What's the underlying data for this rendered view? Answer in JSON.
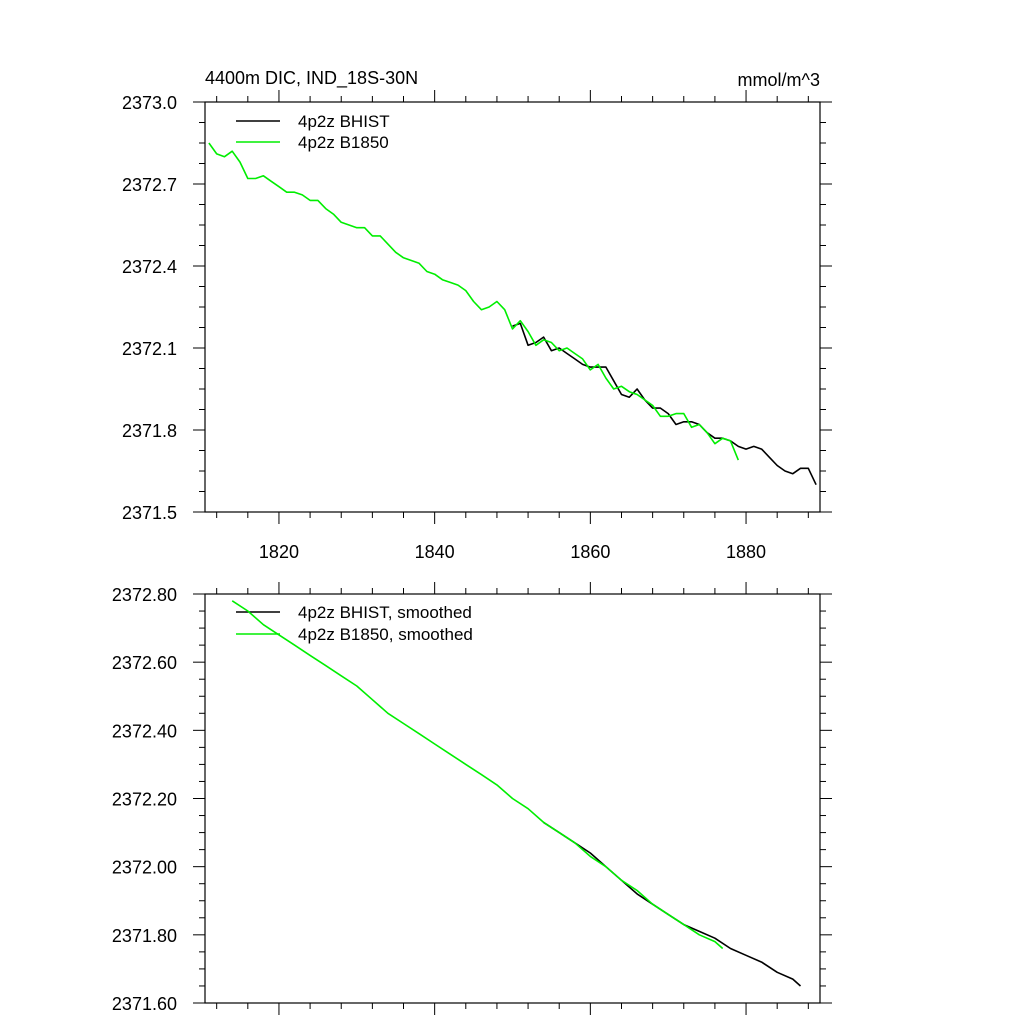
{
  "colors": {
    "bhist": "#000000",
    "b1850": "#00ee00",
    "axis": "#000000",
    "background": "#ffffff"
  },
  "chart_data": [
    {
      "type": "line",
      "title_left": "4400m DIC, IND_18S-30N",
      "title_right": "mmol/m^3",
      "xlabel": "",
      "ylabel": "",
      "xlim": [
        1810.5,
        1889.5
      ],
      "ylim": [
        2371.5,
        2373.0
      ],
      "x_ticks": [
        1820,
        1840,
        1860,
        1880
      ],
      "x_tick_labels": [
        "1820",
        "1840",
        "1860",
        "1880"
      ],
      "y_ticks": [
        2371.5,
        2371.8,
        2372.1,
        2372.4,
        2372.7,
        2373.0
      ],
      "y_tick_labels": [
        "2371.5",
        "2371.8",
        "2372.1",
        "2372.4",
        "2372.7",
        "2373.0"
      ],
      "legend_position": "top-left",
      "grid": false,
      "series": [
        {
          "name": "4p2z BHIST",
          "color": "#000000",
          "x": [
            1850,
            1851,
            1852,
            1853,
            1854,
            1855,
            1856,
            1857,
            1858,
            1859,
            1860,
            1861,
            1862,
            1863,
            1864,
            1865,
            1866,
            1867,
            1868,
            1869,
            1870,
            1871,
            1872,
            1873,
            1874,
            1875,
            1876,
            1877,
            1878,
            1879,
            1880,
            1881,
            1882,
            1883,
            1884,
            1885,
            1886,
            1887,
            1888,
            1889
          ],
          "values": [
            2372.18,
            2372.19,
            2372.11,
            2372.12,
            2372.14,
            2372.09,
            2372.1,
            2372.08,
            2372.06,
            2372.04,
            2372.03,
            2372.03,
            2372.03,
            2371.98,
            2371.93,
            2371.92,
            2371.95,
            2371.91,
            2371.88,
            2371.88,
            2371.86,
            2371.82,
            2371.83,
            2371.83,
            2371.82,
            2371.79,
            2371.77,
            2371.77,
            2371.76,
            2371.74,
            2371.73,
            2371.74,
            2371.73,
            2371.7,
            2371.67,
            2371.65,
            2371.64,
            2371.66,
            2371.66,
            2371.6
          ]
        },
        {
          "name": "4p2z B1850",
          "color": "#00ee00",
          "x": [
            1811,
            1812,
            1813,
            1814,
            1815,
            1816,
            1817,
            1818,
            1819,
            1820,
            1821,
            1822,
            1823,
            1824,
            1825,
            1826,
            1827,
            1828,
            1829,
            1830,
            1831,
            1832,
            1833,
            1834,
            1835,
            1836,
            1837,
            1838,
            1839,
            1840,
            1841,
            1842,
            1843,
            1844,
            1845,
            1846,
            1847,
            1848,
            1849,
            1850,
            1851,
            1852,
            1853,
            1854,
            1855,
            1856,
            1857,
            1858,
            1859,
            1860,
            1861,
            1862,
            1863,
            1864,
            1865,
            1866,
            1867,
            1868,
            1869,
            1870,
            1871,
            1872,
            1873,
            1874,
            1875,
            1876,
            1877,
            1878,
            1879
          ],
          "values": [
            2372.85,
            2372.81,
            2372.8,
            2372.82,
            2372.78,
            2372.72,
            2372.72,
            2372.73,
            2372.71,
            2372.69,
            2372.67,
            2372.67,
            2372.66,
            2372.64,
            2372.64,
            2372.61,
            2372.59,
            2372.56,
            2372.55,
            2372.54,
            2372.54,
            2372.51,
            2372.51,
            2372.48,
            2372.45,
            2372.43,
            2372.42,
            2372.41,
            2372.38,
            2372.37,
            2372.35,
            2372.34,
            2372.33,
            2372.31,
            2372.27,
            2372.24,
            2372.25,
            2372.27,
            2372.24,
            2372.17,
            2372.2,
            2372.16,
            2372.11,
            2372.13,
            2372.12,
            2372.09,
            2372.1,
            2372.08,
            2372.06,
            2372.02,
            2372.04,
            2371.99,
            2371.95,
            2371.96,
            2371.94,
            2371.93,
            2371.91,
            2371.89,
            2371.85,
            2371.85,
            2371.86,
            2371.86,
            2371.81,
            2371.82,
            2371.79,
            2371.75,
            2371.77,
            2371.76,
            2371.69
          ]
        }
      ]
    },
    {
      "type": "line",
      "title_left": "",
      "title_right": "",
      "xlabel": "",
      "ylabel": "",
      "xlim": [
        1810.5,
        1889.5
      ],
      "ylim": [
        2371.6,
        2372.8
      ],
      "x_ticks": [
        1820,
        1840,
        1860,
        1880
      ],
      "x_tick_labels": [],
      "y_ticks": [
        2371.6,
        2371.8,
        2372.0,
        2372.2,
        2372.4,
        2372.6,
        2372.8
      ],
      "y_tick_labels": [
        "2371.60",
        "2371.80",
        "2372.00",
        "2372.20",
        "2372.40",
        "2372.60",
        "2372.80"
      ],
      "legend_position": "top-left",
      "grid": false,
      "series": [
        {
          "name": "4p2z BHIST, smoothed",
          "color": "#000000",
          "x": [
            1854,
            1856,
            1858,
            1860,
            1862,
            1864,
            1866,
            1868,
            1870,
            1872,
            1874,
            1876,
            1878,
            1880,
            1882,
            1884,
            1886,
            1887
          ],
          "values": [
            2372.13,
            2372.1,
            2372.07,
            2372.04,
            2372.0,
            2371.96,
            2371.92,
            2371.89,
            2371.86,
            2371.83,
            2371.81,
            2371.79,
            2371.76,
            2371.74,
            2371.72,
            2371.69,
            2371.67,
            2371.65
          ]
        },
        {
          "name": "4p2z B1850, smoothed",
          "color": "#00ee00",
          "x": [
            1814,
            1816,
            1818,
            1820,
            1822,
            1824,
            1826,
            1828,
            1830,
            1832,
            1834,
            1836,
            1838,
            1840,
            1842,
            1844,
            1846,
            1848,
            1850,
            1852,
            1854,
            1856,
            1858,
            1860,
            1862,
            1864,
            1866,
            1868,
            1870,
            1872,
            1874,
            1876,
            1877
          ],
          "values": [
            2372.78,
            2372.75,
            2372.71,
            2372.68,
            2372.65,
            2372.62,
            2372.59,
            2372.56,
            2372.53,
            2372.49,
            2372.45,
            2372.42,
            2372.39,
            2372.36,
            2372.33,
            2372.3,
            2372.27,
            2372.24,
            2372.2,
            2372.17,
            2372.13,
            2372.1,
            2372.07,
            2372.03,
            2372.0,
            2371.96,
            2371.93,
            2371.89,
            2371.86,
            2371.83,
            2371.8,
            2371.78,
            2371.76
          ]
        }
      ]
    }
  ]
}
